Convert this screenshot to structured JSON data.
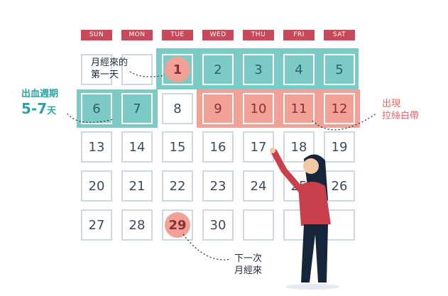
{
  "calendar": {
    "weekdays": [
      "SUN",
      "MON",
      "TUE",
      "WED",
      "THU",
      "FRI",
      "SAT"
    ],
    "rows": [
      [
        "",
        "",
        "1",
        "2",
        "3",
        "4",
        "5"
      ],
      [
        "6",
        "7",
        "8",
        "9",
        "10",
        "11",
        "12"
      ],
      [
        "13",
        "14",
        "15",
        "16",
        "17",
        "18",
        "19"
      ],
      [
        "20",
        "21",
        "22",
        "23",
        "24",
        "25",
        "26"
      ],
      [
        "27",
        "28",
        "29",
        "30",
        "",
        "",
        ""
      ]
    ]
  },
  "labels": {
    "first_day_line1": "月經來的",
    "first_day_line2": "第一天",
    "bleeding_line1": "出血週期",
    "bleeding_line2": "5-7",
    "bleeding_unit": "天",
    "discharge_line1": "出現",
    "discharge_line2": "拉絲白帶",
    "next_period_line1": "下一次",
    "next_period_line2": "月經來"
  },
  "colors": {
    "header_red": "#c9495a",
    "teal": "#7ccac6",
    "pink": "#f2a196",
    "grid_border": "#cdd8e3"
  }
}
